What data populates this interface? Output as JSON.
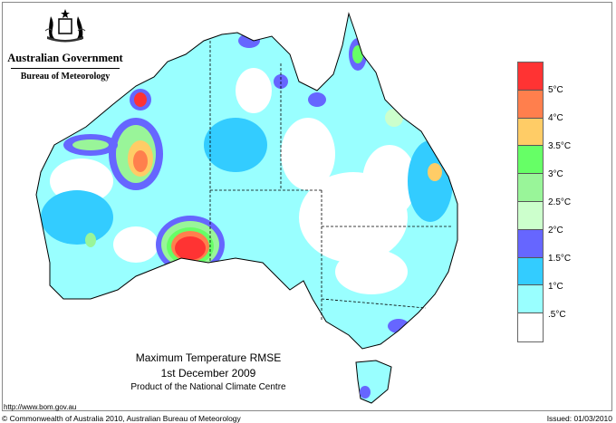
{
  "logo": {
    "emblem": "commonwealth-coat-of-arms",
    "government": "Australian Government",
    "agency": "Bureau of Meteorology"
  },
  "title": {
    "line1": "Maximum Temperature RMSE",
    "line2": "1st  December  2009",
    "line3": "Product of the National Climate Centre"
  },
  "footer": {
    "url": "http://www.bom.gov.au",
    "copyright": "© Commonwealth of Australia 2010, Australian Bureau of Meteorology",
    "issued": "Issued: 01/03/2010"
  },
  "legend": {
    "bands": [
      {
        "color": "#ff3333"
      },
      {
        "color": "#ff7f4d"
      },
      {
        "color": "#ffcc66"
      },
      {
        "color": "#66ff66"
      },
      {
        "color": "#99f599"
      },
      {
        "color": "#ccffcc"
      },
      {
        "color": "#6666ff"
      },
      {
        "color": "#33ccff"
      },
      {
        "color": "#99ffff"
      },
      {
        "color": "#ffffff"
      }
    ],
    "labels": [
      "5°C",
      "4°C",
      "3.5°C",
      "3°C",
      "2.5°C",
      "2°C",
      "1.5°C",
      "1°C",
      ".5°C"
    ]
  }
}
